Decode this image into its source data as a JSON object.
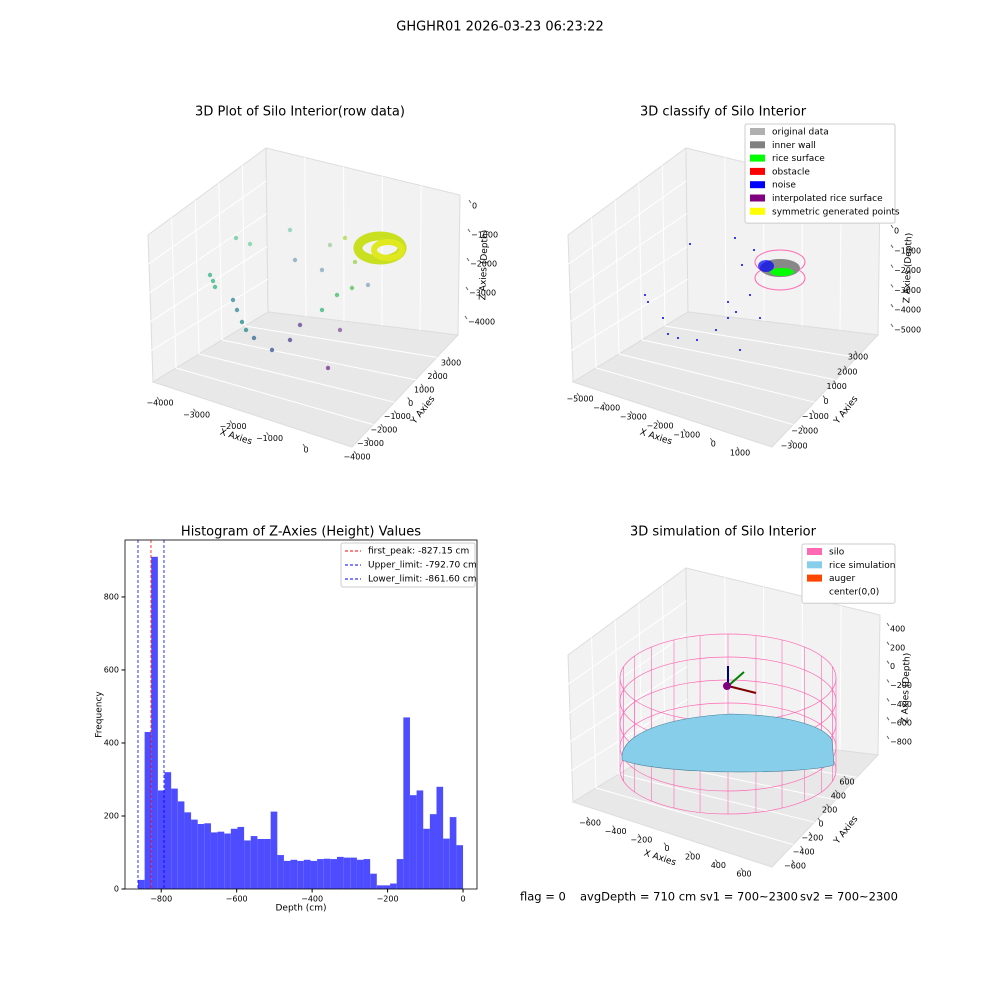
{
  "title": "GHGHR01 2026-03-23 06:23:22",
  "footer": [
    "flag = 0",
    "avgDepth = 710 cm",
    "sv1 = 700~2300",
    "sv2 = 700~2300"
  ],
  "chart_data": [
    {
      "type": "scatter3d",
      "title": "3D Plot of Silo Interior(row data)",
      "xlabel": "X Axies",
      "ylabel": "Y Axies",
      "zlabel": "Z Axies (Depth)",
      "xticks": [
        {
          "value": -4000,
          "label": "−4000"
        },
        {
          "value": -3000,
          "label": "−3000"
        },
        {
          "value": -2000,
          "label": "−2000"
        },
        {
          "value": -1000,
          "label": "−1000"
        },
        0
      ],
      "yticks": [
        {
          "value": -4000,
          "label": "−4000"
        },
        {
          "value": -3000,
          "label": "−3000"
        },
        {
          "value": -2000,
          "label": "−2000"
        },
        {
          "value": -1000,
          "label": "−1000"
        },
        0,
        1000,
        2000,
        3000
      ],
      "zticks": [
        0,
        {
          "value": -1000,
          "label": "−1000"
        },
        {
          "value": -2000,
          "label": "−2000"
        },
        {
          "value": -3000,
          "label": "−3000"
        },
        {
          "value": -4000,
          "label": "−4000"
        }
      ]
    },
    {
      "type": "scatter3d",
      "title": "3D classify of Silo Interior",
      "xlabel": "X Axies",
      "ylabel": "Y Axies",
      "zlabel": "Z Axies (Depth)",
      "xticks": [
        {
          "value": -5000,
          "label": "−5000"
        },
        {
          "value": -4000,
          "label": "−4000"
        },
        {
          "value": -3000,
          "label": "−3000"
        },
        {
          "value": -2000,
          "label": "−2000"
        },
        {
          "value": -1000,
          "label": "−1000"
        },
        0,
        1000
      ],
      "yticks": [
        {
          "value": -3000,
          "label": "−3000"
        },
        {
          "value": -2000,
          "label": "−2000"
        },
        {
          "value": -1000,
          "label": "−1000"
        },
        0,
        1000,
        2000,
        3000
      ],
      "zticks": [
        0,
        {
          "value": -1000,
          "label": "−1000"
        },
        {
          "value": -2000,
          "label": "−2000"
        },
        {
          "value": -3000,
          "label": "−3000"
        },
        {
          "value": -4000,
          "label": "−4000"
        },
        {
          "value": -5000,
          "label": "−5000"
        }
      ],
      "legend": [
        {
          "name": "original data",
          "color": "#b0b0b0"
        },
        {
          "name": "inner wall",
          "color": "#808080"
        },
        {
          "name": "rice surface",
          "color": "#00ff00"
        },
        {
          "name": "obstacle",
          "color": "#ff0000"
        },
        {
          "name": "noise",
          "color": "#0000ff"
        },
        {
          "name": "interpolated rice surface",
          "color": "#800080"
        },
        {
          "name": "symmetric generated points",
          "color": "#ffff00"
        }
      ]
    },
    {
      "type": "histogram",
      "title": "Histogram of Z-Axies (Height) Values",
      "xlabel": "Depth (cm)",
      "ylabel": "Frequency",
      "color": "#4d4dff",
      "bins": [
        -861.6,
        -844.0,
        -826.4,
        -808.9,
        -791.3,
        -773.7,
        -756.1,
        -738.5,
        -720.9,
        -703.3,
        -685.8,
        -668.2,
        -650.6,
        -633.0,
        -615.4,
        -597.8,
        -580.3,
        -562.7,
        -545.1,
        -527.5,
        -509.9,
        -492.3,
        -474.8,
        -457.2,
        -439.6,
        -422.0,
        -404.4,
        -386.8,
        -369.2,
        -351.7,
        -334.1,
        -316.5,
        -298.9,
        -281.3,
        -263.7,
        -246.2,
        -228.6,
        -211.0,
        -193.4,
        -175.8,
        -158.2,
        -140.7,
        -123.1,
        -105.5,
        -87.9,
        -70.3,
        -52.8,
        -35.2,
        -17.6,
        0.0
      ],
      "counts": [
        25,
        430,
        910,
        270,
        320,
        275,
        240,
        210,
        190,
        178,
        180,
        155,
        157,
        152,
        165,
        170,
        133,
        145,
        137,
        137,
        212,
        93,
        77,
        80,
        77,
        80,
        77,
        82,
        83,
        82,
        88,
        86,
        86,
        80,
        82,
        42,
        10,
        10,
        15,
        82,
        470,
        257,
        270,
        165,
        205,
        280,
        138,
        197,
        120
      ],
      "xlim": [
        -896,
        37
      ],
      "ylim": [
        0,
        956
      ],
      "xticks": [
        {
          "value": -800,
          "label": "−800"
        },
        {
          "value": -600,
          "label": "−600"
        },
        {
          "value": -400,
          "label": "−400"
        },
        {
          "value": -200,
          "label": "−200"
        },
        0
      ],
      "yticks": [
        0,
        200,
        400,
        600,
        800
      ],
      "legend": "upper right",
      "lines": [
        {
          "name": "first_peak: -827.15 cm",
          "value": -827.15,
          "color": "#ff0000"
        },
        {
          "name": "Upper_limit: -792.70 cm",
          "value": -792.7,
          "color": "#0000ff"
        },
        {
          "name": "Lower_limit: -861.60 cm",
          "value": -861.6,
          "color": "#0000ff"
        }
      ]
    },
    {
      "type": "wireframe3d",
      "title": "3D simulation of Silo Interior",
      "xlabel": "X Axies",
      "ylabel": "Y Axies",
      "zlabel": "Z Axies (Depth)",
      "xticks": [
        {
          "value": -600,
          "label": "−600"
        },
        {
          "value": -400,
          "label": "−400"
        },
        {
          "value": -200,
          "label": "−200"
        },
        0,
        200,
        400,
        600
      ],
      "yticks": [
        {
          "value": -600,
          "label": "−600"
        },
        {
          "value": -400,
          "label": "−400"
        },
        {
          "value": -200,
          "label": "−200"
        },
        0,
        200,
        400,
        600
      ],
      "zticks": [
        400,
        200,
        0,
        {
          "value": -200,
          "label": "−200"
        },
        {
          "value": -400,
          "label": "−400"
        },
        {
          "value": -600,
          "label": "−600"
        },
        {
          "value": -800,
          "label": "−800"
        }
      ],
      "legend": [
        {
          "name": "silo",
          "color": "#ff69b4"
        },
        {
          "name": "rice simulation",
          "color": "#87ceeb"
        },
        {
          "name": "auger",
          "color": "#ff4500"
        },
        {
          "name": "center(0,0)",
          "color": "#ffffff"
        }
      ]
    }
  ]
}
